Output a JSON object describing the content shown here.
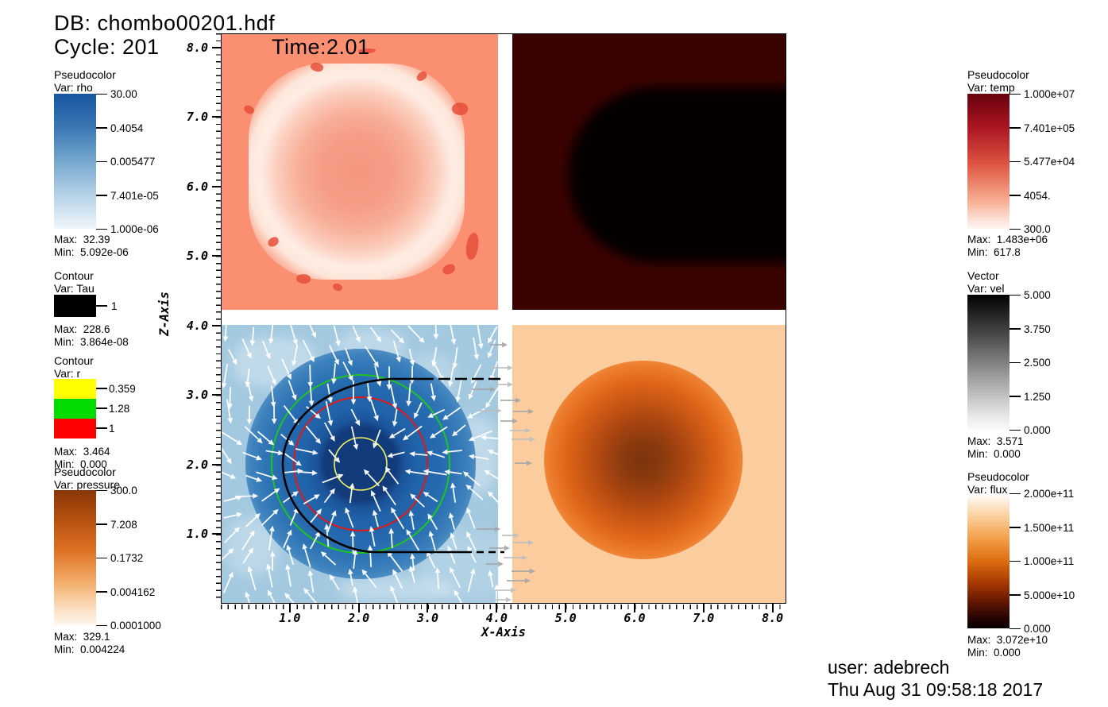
{
  "header": {
    "db": "DB: chombo00201.hdf",
    "cycle": "Cycle: 201",
    "time": "Time:2.01"
  },
  "footer": {
    "user": "user: adebrech",
    "datetime": "Thu Aug 31 09:58:18 2017"
  },
  "axes": {
    "x": {
      "label": "X-Axis",
      "tick_labels": [
        "1.0",
        "2.0",
        "3.0",
        "4.0",
        "5.0",
        "6.0",
        "7.0",
        "8.0"
      ],
      "range": [
        0,
        8.2
      ],
      "minor_step": 0.1
    },
    "z": {
      "label": "Z-Axis",
      "tick_labels": [
        "8.0",
        "7.0",
        "6.0",
        "5.0",
        "4.0",
        "3.0",
        "2.0",
        "1.0"
      ],
      "range": [
        0,
        8.2
      ],
      "minor_step": 0.1
    }
  },
  "legends": {
    "rho": {
      "type": "Pseudocolor",
      "var": "Var: rho",
      "ticks": [
        "30.00",
        "0.4054",
        "0.005477",
        "7.401e-05",
        "1.000e-06"
      ],
      "max": "Max:  32.39",
      "min": "Min:  5.092e-06",
      "gradient": [
        "#17579F 0%",
        "#3B77B4 25%",
        "#76A7CE 50%",
        "#B5D2E7 75%",
        "#EFF5FB 100%"
      ]
    },
    "tau": {
      "type": "Contour",
      "var": "Var: Tau",
      "ticks": [
        "1"
      ],
      "swatch_color": "#000000",
      "max": "Max:  228.6",
      "min": "Min:  3.864e-08"
    },
    "r": {
      "type": "Contour",
      "var": "Var: r",
      "entries": [
        {
          "color": "#FFFF00",
          "label": "0.359"
        },
        {
          "color": "#00DC00",
          "label": "1.28"
        },
        {
          "color": "#FF0000",
          "label": "1"
        }
      ],
      "max": "Max:  3.464",
      "min": "Min:  0.000"
    },
    "pressure": {
      "type": "Pseudocolor",
      "var": "Var: pressure",
      "ticks": [
        "300.0",
        "7.208",
        "0.1732",
        "0.004162",
        "0.0001000"
      ],
      "max": "Max:  329.1",
      "min": "Min:  0.004224",
      "gradient": [
        "#87370A 0%",
        "#B34E0E 20%",
        "#DE7224 45%",
        "#F3AC6B 68%",
        "#FBDFC2 88%",
        "#FEF6EC 100%"
      ]
    },
    "temp": {
      "type": "Pseudocolor",
      "var": "Var: temp",
      "ticks": [
        "1.000e+07",
        "7.401e+05",
        "5.477e+04",
        "4054.",
        "300.0"
      ],
      "max": "Max:  1.483e+06",
      "min": "Min:  617.8",
      "gradient": [
        "#67000D 0%",
        "#AC1622 25%",
        "#DE5443 52%",
        "#F7A98D 78%",
        "#FDE4DA 94%",
        "#FFF6F1 100%"
      ]
    },
    "vel": {
      "type": "Vector",
      "var": "Var: vel",
      "ticks": [
        "5.000",
        "3.750",
        "2.500",
        "1.250",
        "0.000"
      ],
      "max": "Max:  3.571",
      "min": "Min:  0.000",
      "gradient": [
        "#000000 0%",
        "#4A4A4A 30%",
        "#9B9B9B 60%",
        "#E8E8E8 90%",
        "#FBFBFB 100%"
      ]
    },
    "flux": {
      "type": "Pseudocolor",
      "var": "Var: flux",
      "ticks": [
        "2.000e+11",
        "1.500e+11",
        "1.000e+11",
        "5.000e+10",
        "0.000"
      ],
      "max": "Max:  3.072e+10",
      "min": "Min:  0.000",
      "gradient": [
        "#FFFFFF 0%",
        "#FBD3A2 16%",
        "#F4A04C 33%",
        "#DE6D10 50%",
        "#A43704 67%",
        "#5F1503 81%",
        "#230402 93%",
        "#070000 100%"
      ]
    }
  },
  "chart_data": [
    {
      "type": "heatmap",
      "panel": "top-left",
      "variable": "temp",
      "x_range": [
        0,
        4
      ],
      "z_range": [
        4.2,
        8.2
      ],
      "background_color": "#FA8F71",
      "legend_ticks": [
        "1.000e+07",
        "7.401e+05",
        "5.477e+04",
        "4054.",
        "300.0"
      ],
      "max": "1.483e+06",
      "min": "617.8",
      "description": "salmon field with bright rounded-square ring blob and small dark-red eddies"
    },
    {
      "type": "heatmap",
      "panel": "top-right",
      "variable": "flux",
      "x_range": [
        4.2,
        8.2
      ],
      "z_range": [
        4.2,
        8.2
      ],
      "background_color": "#3B0300",
      "legend_ticks": [
        "2.000e+11",
        "1.500e+11",
        "1.000e+11",
        "5.000e+10",
        "0.000"
      ],
      "max": "3.072e+10",
      "min": "0.000",
      "description": "dark maroon field with large black rounded region attached to right edge"
    },
    {
      "type": "heatmap",
      "panel": "bottom-left",
      "variable": "rho",
      "x_range": [
        0,
        4
      ],
      "z_range": [
        0,
        4
      ],
      "background_color": "#A3C9E0",
      "legend_ticks": [
        "30.00",
        "0.4054",
        "0.005477",
        "7.401e-05",
        "1.000e-06"
      ],
      "max": "32.39",
      "min": "5.092e-06",
      "overlays": [
        {
          "type": "vector",
          "variable": "vel",
          "color": "#FFFFFF",
          "max": "3.571",
          "min": "0.000"
        },
        {
          "type": "contour",
          "variable": "Tau",
          "levels": [
            "1"
          ],
          "colors": [
            "#000000"
          ]
        },
        {
          "type": "contour",
          "variable": "r",
          "levels": [
            "0.359",
            "1.28",
            "1"
          ],
          "colors": [
            "#FFFF00",
            "#00DC00",
            "#FF0000"
          ]
        }
      ],
      "description": "light-blue field, dark navy core circled by yellow/red/green contours, black Tau contour open to the right, white inward-pointing velocity arrows"
    },
    {
      "type": "heatmap",
      "panel": "bottom-right",
      "variable": "pressure",
      "x_range": [
        4.2,
        8.2
      ],
      "z_range": [
        0,
        4
      ],
      "background_color": "#FBCD9E",
      "legend_ticks": [
        "300.0",
        "7.208",
        "0.1732",
        "0.004162",
        "0.0001000"
      ],
      "max": "329.1",
      "min": "0.004224",
      "description": "peach field with circular orange blob, dark brown center"
    }
  ],
  "vector_overlay_colors": {
    "white_arrows": "#FFFFFF",
    "gray_arrows": "#A5A5A5"
  }
}
